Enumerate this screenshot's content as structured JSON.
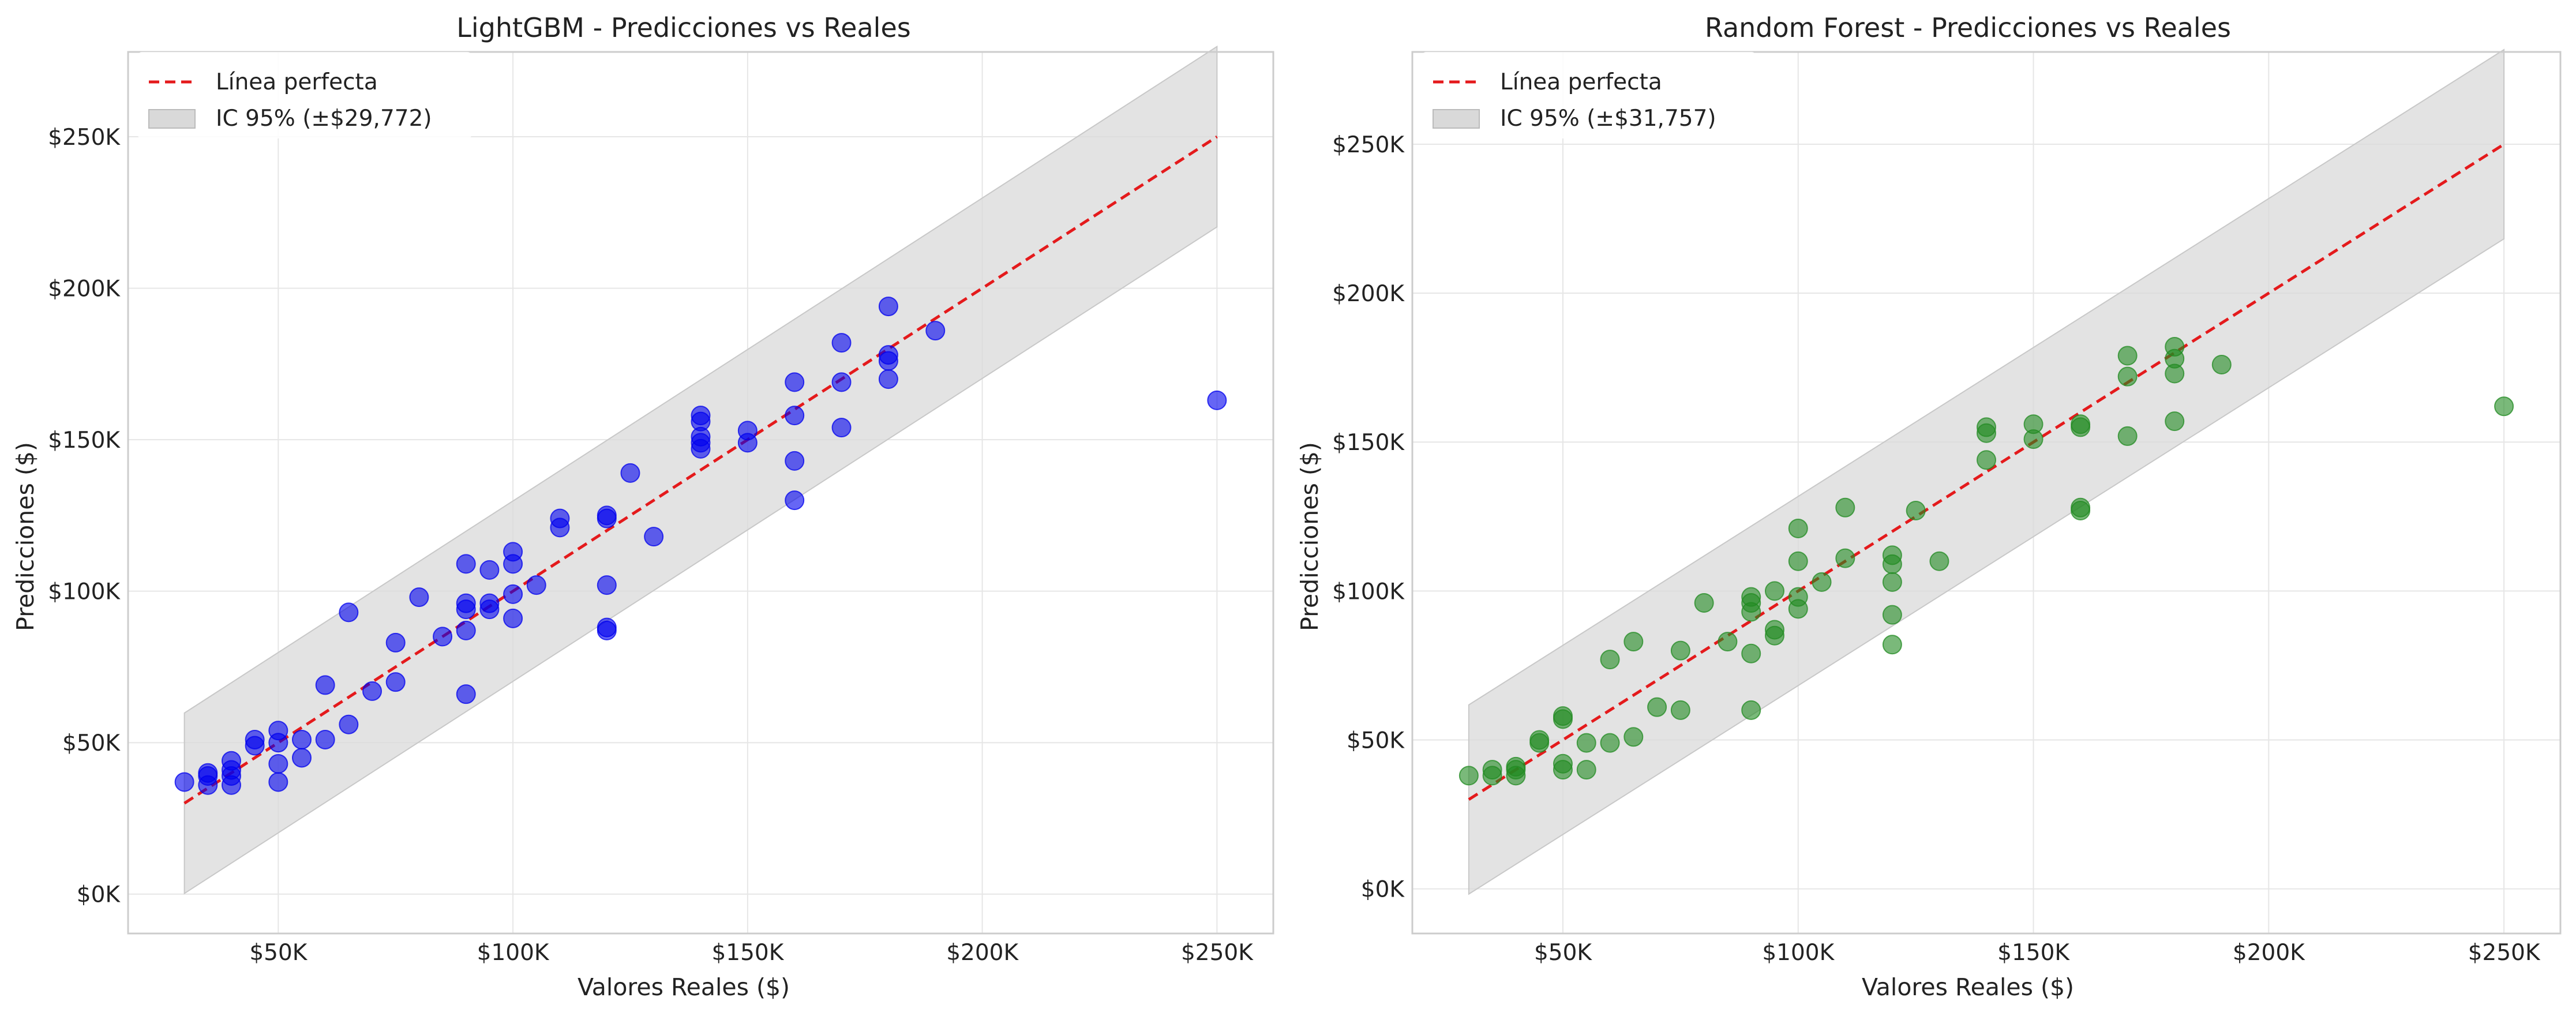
{
  "chart_data": [
    {
      "type": "scatter",
      "title": "LightGBM - Predicciones vs Reales",
      "xlabel": "Valores Reales ($)",
      "ylabel": "Predicciones ($)",
      "xlim": [
        18000,
        262000
      ],
      "ylim": [
        -13000,
        278000
      ],
      "x_ticks": [
        50000,
        100000,
        150000,
        200000,
        250000
      ],
      "x_tick_labels": [
        "$50K",
        "$100K",
        "$150K",
        "$200K",
        "$250K"
      ],
      "y_ticks": [
        0,
        50000,
        100000,
        150000,
        200000,
        250000
      ],
      "y_tick_labels": [
        "$0K",
        "$50K",
        "$100K",
        "$150K",
        "$200K",
        "$250K"
      ],
      "grid": true,
      "legend_position": "top-left",
      "legend": [
        "Línea perfecta",
        "IC 95% (±$29,772)"
      ],
      "point_color": "#0000ee",
      "perfect_line": {
        "x": [
          30000,
          250000
        ],
        "y": [
          30000,
          250000
        ],
        "color": "#e41a1c"
      },
      "ci_band": {
        "x": [
          30000,
          250000
        ],
        "halfwidth": 29772,
        "color": "#d9d9d9"
      },
      "series": [
        {
          "points": [
            [
              30000,
              37000
            ],
            [
              35000,
              36000
            ],
            [
              35000,
              39000
            ],
            [
              35000,
              40000
            ],
            [
              40000,
              36000
            ],
            [
              40000,
              39000
            ],
            [
              40000,
              41000
            ],
            [
              40000,
              44000
            ],
            [
              45000,
              49000
            ],
            [
              45000,
              51000
            ],
            [
              50000,
              37000
            ],
            [
              50000,
              43000
            ],
            [
              50000,
              50000
            ],
            [
              50000,
              54000
            ],
            [
              55000,
              45000
            ],
            [
              55000,
              51000
            ],
            [
              60000,
              51000
            ],
            [
              60000,
              69000
            ],
            [
              65000,
              56000
            ],
            [
              65000,
              93000
            ],
            [
              70000,
              67000
            ],
            [
              75000,
              70000
            ],
            [
              75000,
              83000
            ],
            [
              80000,
              98000
            ],
            [
              85000,
              85000
            ],
            [
              90000,
              66000
            ],
            [
              90000,
              87000
            ],
            [
              90000,
              94000
            ],
            [
              90000,
              96000
            ],
            [
              90000,
              109000
            ],
            [
              95000,
              94000
            ],
            [
              95000,
              96000
            ],
            [
              95000,
              107000
            ],
            [
              100000,
              91000
            ],
            [
              100000,
              99000
            ],
            [
              100000,
              109000
            ],
            [
              100000,
              113000
            ],
            [
              105000,
              102000
            ],
            [
              110000,
              121000
            ],
            [
              110000,
              124000
            ],
            [
              120000,
              87000
            ],
            [
              120000,
              88000
            ],
            [
              120000,
              102000
            ],
            [
              120000,
              124000
            ],
            [
              120000,
              125000
            ],
            [
              125000,
              139000
            ],
            [
              130000,
              118000
            ],
            [
              140000,
              147000
            ],
            [
              140000,
              149000
            ],
            [
              140000,
              151000
            ],
            [
              140000,
              156000
            ],
            [
              140000,
              158000
            ],
            [
              150000,
              149000
            ],
            [
              150000,
              153000
            ],
            [
              160000,
              130000
            ],
            [
              160000,
              143000
            ],
            [
              160000,
              158000
            ],
            [
              160000,
              169000
            ],
            [
              170000,
              154000
            ],
            [
              170000,
              169000
            ],
            [
              170000,
              182000
            ],
            [
              180000,
              170000
            ],
            [
              180000,
              176000
            ],
            [
              180000,
              178000
            ],
            [
              180000,
              194000
            ],
            [
              190000,
              186000
            ],
            [
              250000,
              163000
            ]
          ]
        }
      ]
    },
    {
      "type": "scatter",
      "title": "Random Forest - Predicciones vs Reales",
      "xlabel": "Valores Reales ($)",
      "ylabel": "Predicciones ($)",
      "xlim": [
        18000,
        262000
      ],
      "ylim": [
        -15000,
        281000
      ],
      "x_ticks": [
        50000,
        100000,
        150000,
        200000,
        250000
      ],
      "x_tick_labels": [
        "$50K",
        "$100K",
        "$150K",
        "$200K",
        "$250K"
      ],
      "y_ticks": [
        0,
        50000,
        100000,
        150000,
        200000,
        250000
      ],
      "y_tick_labels": [
        "$0K",
        "$50K",
        "$100K",
        "$150K",
        "$200K",
        "$250K"
      ],
      "grid": true,
      "legend_position": "top-left",
      "legend": [
        "Línea perfecta",
        "IC 95% (±$31,757)"
      ],
      "point_color": "#228b22",
      "perfect_line": {
        "x": [
          30000,
          250000
        ],
        "y": [
          30000,
          250000
        ],
        "color": "#e41a1c"
      },
      "ci_band": {
        "x": [
          30000,
          250000
        ],
        "halfwidth": 31757,
        "color": "#d9d9d9"
      },
      "series": [
        {
          "points": [
            [
              30000,
              38000
            ],
            [
              35000,
              38000
            ],
            [
              35000,
              40000
            ],
            [
              40000,
              38000
            ],
            [
              40000,
              40000
            ],
            [
              40000,
              41000
            ],
            [
              45000,
              49000
            ],
            [
              45000,
              50000
            ],
            [
              50000,
              40000
            ],
            [
              50000,
              42000
            ],
            [
              50000,
              57000
            ],
            [
              50000,
              58000
            ],
            [
              55000,
              40000
            ],
            [
              55000,
              49000
            ],
            [
              60000,
              49000
            ],
            [
              60000,
              77000
            ],
            [
              65000,
              51000
            ],
            [
              65000,
              83000
            ],
            [
              70000,
              61000
            ],
            [
              75000,
              60000
            ],
            [
              75000,
              80000
            ],
            [
              80000,
              96000
            ],
            [
              85000,
              83000
            ],
            [
              90000,
              60000
            ],
            [
              90000,
              79000
            ],
            [
              90000,
              93000
            ],
            [
              90000,
              96000
            ],
            [
              90000,
              98000
            ],
            [
              95000,
              85000
            ],
            [
              95000,
              87000
            ],
            [
              95000,
              100000
            ],
            [
              100000,
              94000
            ],
            [
              100000,
              98000
            ],
            [
              100000,
              110000
            ],
            [
              100000,
              121000
            ],
            [
              105000,
              103000
            ],
            [
              110000,
              111000
            ],
            [
              110000,
              128000
            ],
            [
              120000,
              82000
            ],
            [
              120000,
              92000
            ],
            [
              120000,
              103000
            ],
            [
              120000,
              109000
            ],
            [
              120000,
              112000
            ],
            [
              125000,
              127000
            ],
            [
              130000,
              110000
            ],
            [
              140000,
              144000
            ],
            [
              140000,
              153000
            ],
            [
              140000,
              155000
            ],
            [
              150000,
              151000
            ],
            [
              150000,
              156000
            ],
            [
              160000,
              127000
            ],
            [
              160000,
              128000
            ],
            [
              160000,
              155000
            ],
            [
              160000,
              156000
            ],
            [
              170000,
              152000
            ],
            [
              170000,
              172000
            ],
            [
              170000,
              179000
            ],
            [
              180000,
              157000
            ],
            [
              180000,
              173000
            ],
            [
              180000,
              178000
            ],
            [
              180000,
              182000
            ],
            [
              190000,
              176000
            ],
            [
              250000,
              162000
            ]
          ]
        }
      ]
    }
  ]
}
